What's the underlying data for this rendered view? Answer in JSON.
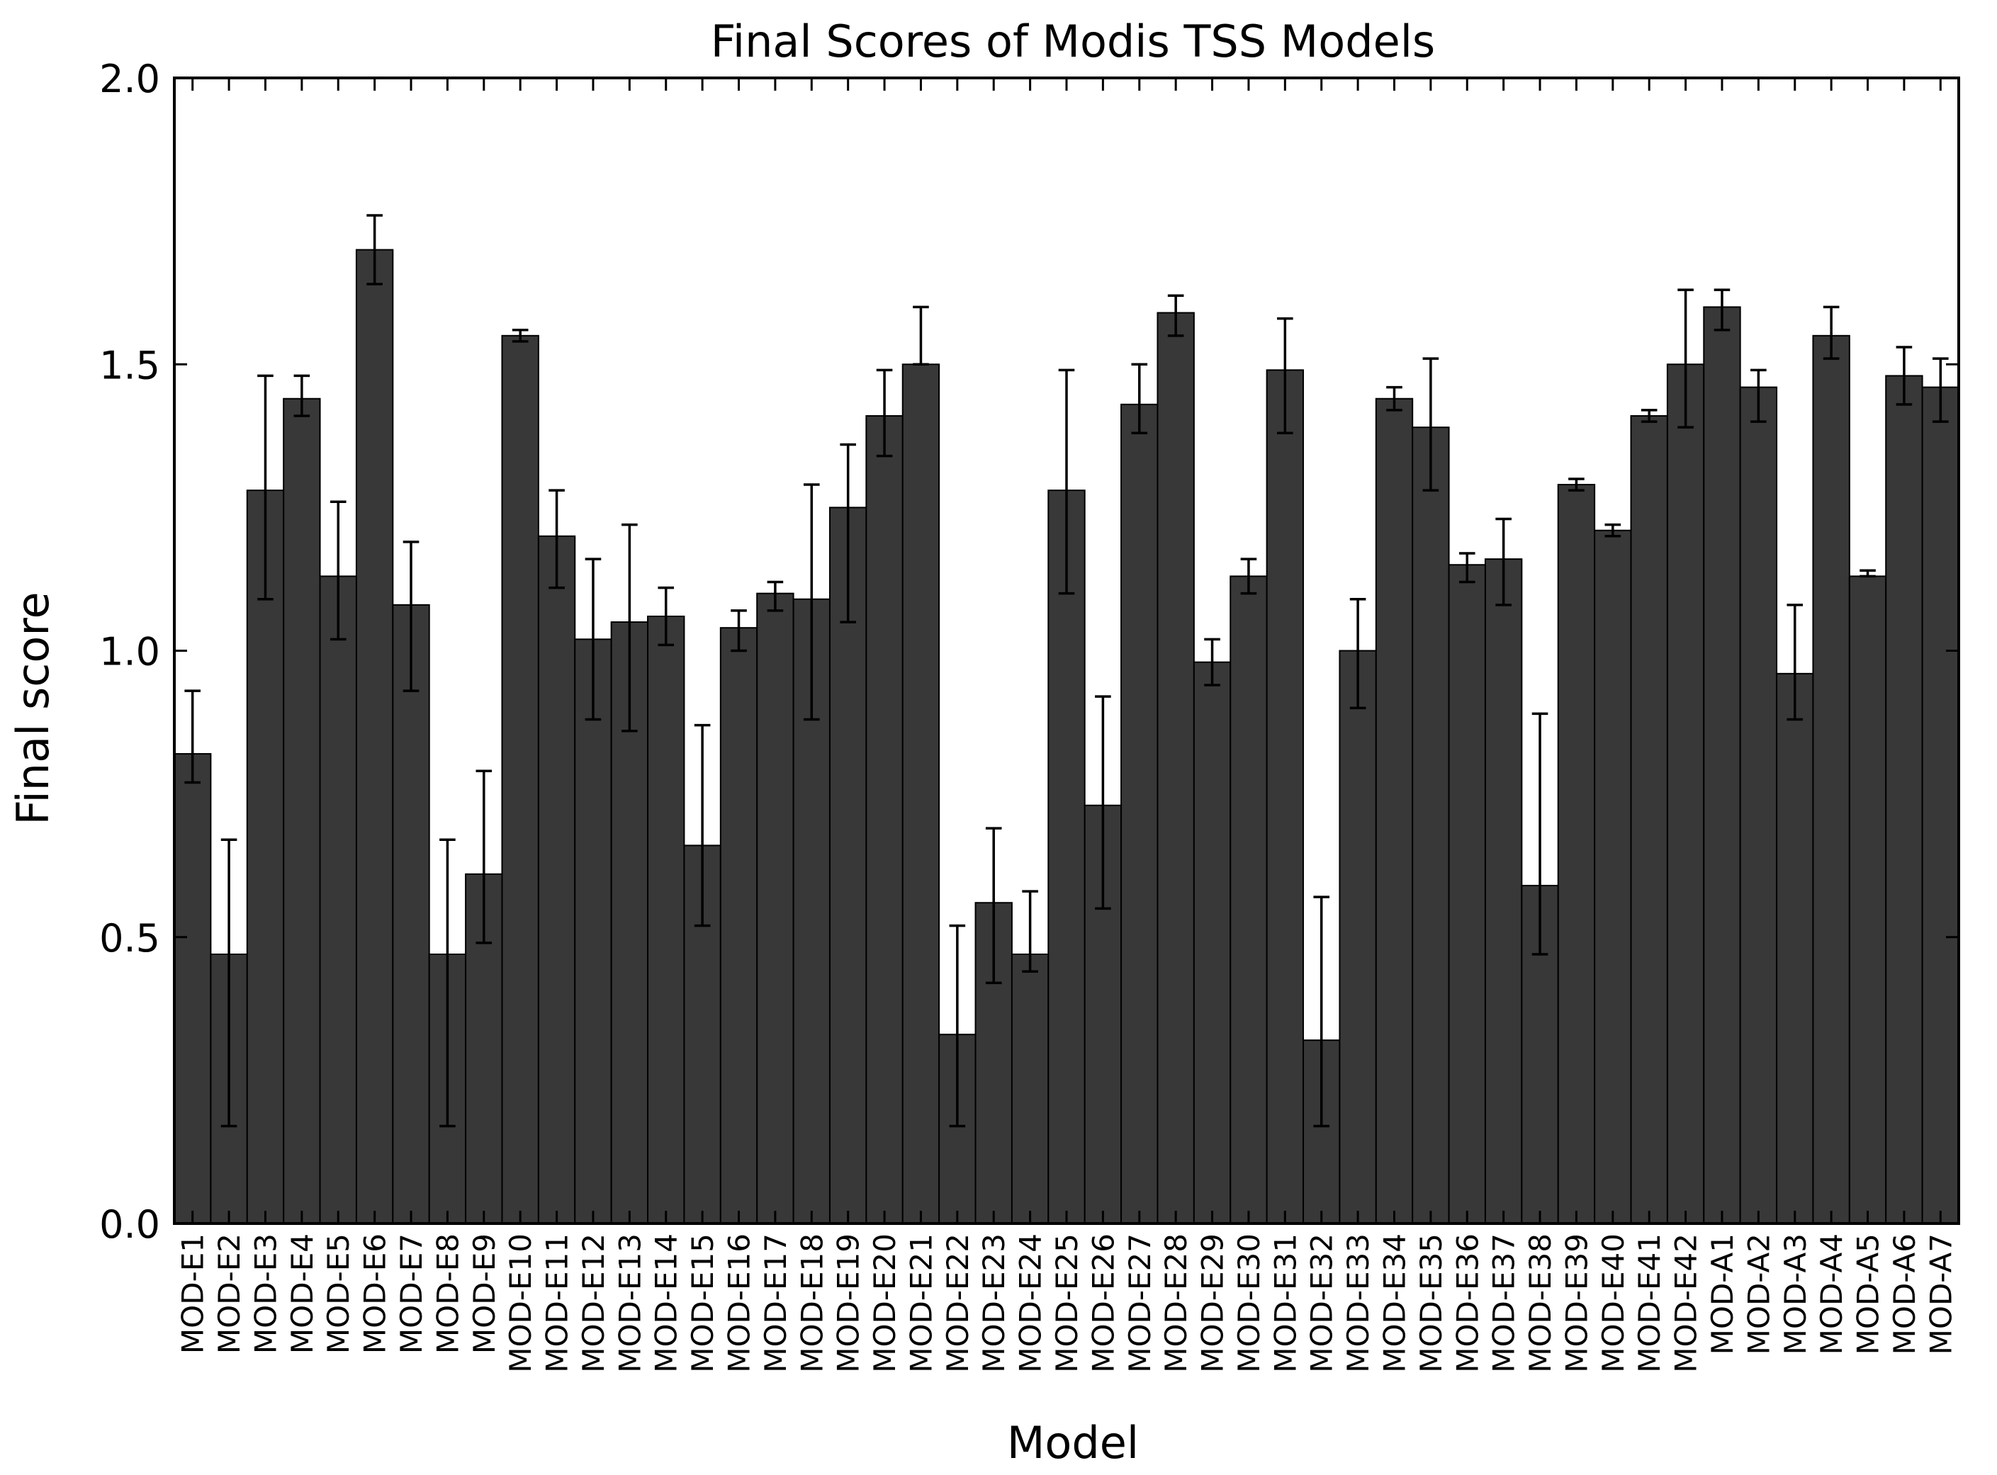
{
  "chart_data": {
    "type": "bar",
    "title": "Final Scores of Modis TSS Models",
    "xlabel": "Model",
    "ylabel": "Final score",
    "ylim": [
      0,
      2.0
    ],
    "yticks": [
      "0.0",
      "0.5",
      "1.0",
      "1.5",
      "2.0"
    ],
    "ytick_values": [
      0,
      0.5,
      1.0,
      1.5,
      2.0
    ],
    "grid": false,
    "legend": "none",
    "bar_color": "#383838",
    "errorbar_color": "#000000",
    "categories": [
      "MOD-E1",
      "MOD-E2",
      "MOD-E3",
      "MOD-E4",
      "MOD-E5",
      "MOD-E6",
      "MOD-E7",
      "MOD-E8",
      "MOD-E9",
      "MOD-E10",
      "MOD-E11",
      "MOD-E12",
      "MOD-E13",
      "MOD-E14",
      "MOD-E15",
      "MOD-E16",
      "MOD-E17",
      "MOD-E18",
      "MOD-E19",
      "MOD-E20",
      "MOD-E21",
      "MOD-E22",
      "MOD-E23",
      "MOD-E24",
      "MOD-E25",
      "MOD-E26",
      "MOD-E27",
      "MOD-E28",
      "MOD-E29",
      "MOD-E30",
      "MOD-E31",
      "MOD-E32",
      "MOD-E33",
      "MOD-E34",
      "MOD-E35",
      "MOD-E36",
      "MOD-E37",
      "MOD-E38",
      "MOD-E39",
      "MOD-E40",
      "MOD-E41",
      "MOD-E42",
      "MOD-A1",
      "MOD-A2",
      "MOD-A3",
      "MOD-A4",
      "MOD-A5",
      "MOD-A6",
      "MOD-A7"
    ],
    "values": [
      0.82,
      0.47,
      1.28,
      1.44,
      1.13,
      1.7,
      1.08,
      0.47,
      0.61,
      1.55,
      1.2,
      1.02,
      1.05,
      1.06,
      0.66,
      1.04,
      1.1,
      1.09,
      1.25,
      1.41,
      1.5,
      0.33,
      0.56,
      0.47,
      1.28,
      0.73,
      1.43,
      1.59,
      0.98,
      1.13,
      1.49,
      0.32,
      1.0,
      1.44,
      1.39,
      1.15,
      1.16,
      0.59,
      1.29,
      1.21,
      1.41,
      1.5,
      1.6,
      1.46,
      0.96,
      1.55,
      1.13,
      1.48,
      1.46
    ],
    "error_low": [
      0.77,
      0.17,
      1.09,
      1.41,
      1.02,
      1.64,
      0.93,
      0.17,
      0.49,
      1.54,
      1.11,
      0.88,
      0.86,
      1.01,
      0.52,
      1.0,
      1.07,
      0.88,
      1.05,
      1.34,
      1.5,
      0.17,
      0.42,
      0.44,
      1.1,
      0.55,
      1.38,
      1.55,
      0.94,
      1.1,
      1.38,
      0.17,
      0.9,
      1.42,
      1.28,
      1.12,
      1.08,
      0.47,
      1.28,
      1.2,
      1.4,
      1.39,
      1.56,
      1.4,
      0.88,
      1.51,
      1.13,
      1.43,
      1.4
    ],
    "error_high": [
      0.93,
      0.67,
      1.48,
      1.48,
      1.26,
      1.76,
      1.19,
      0.67,
      0.79,
      1.56,
      1.28,
      1.16,
      1.22,
      1.11,
      0.87,
      1.07,
      1.12,
      1.29,
      1.36,
      1.49,
      1.6,
      0.52,
      0.69,
      0.58,
      1.49,
      0.92,
      1.5,
      1.62,
      1.02,
      1.16,
      1.58,
      0.57,
      1.09,
      1.46,
      1.51,
      1.17,
      1.23,
      0.89,
      1.3,
      1.22,
      1.42,
      1.63,
      1.63,
      1.49,
      1.08,
      1.6,
      1.14,
      1.53,
      1.51
    ]
  }
}
